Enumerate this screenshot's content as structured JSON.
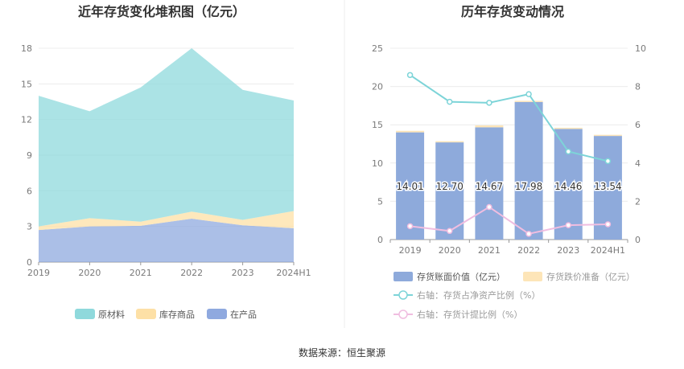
{
  "source_text": "数据来源：恒生聚源",
  "chart_data": [
    {
      "type": "area",
      "stacked": true,
      "title": "近年存货变化堆积图（亿元）",
      "categories": [
        "2019",
        "2020",
        "2021",
        "2022",
        "2023",
        "2024H1"
      ],
      "ylim": [
        0,
        18
      ],
      "yticks": [
        "0",
        "3",
        "6",
        "9",
        "12",
        "15",
        "18"
      ],
      "grid": true,
      "legend_position": "bottom",
      "series": [
        {
          "name": "在产品",
          "color": "#8fa9df",
          "values": [
            2.7,
            3.0,
            3.05,
            3.65,
            3.1,
            2.85
          ]
        },
        {
          "name": "库存商品",
          "color": "#fde0a6",
          "values": [
            0.3,
            0.7,
            0.35,
            0.6,
            0.45,
            1.45
          ]
        },
        {
          "name": "原材料",
          "color": "#8fd9dc",
          "values": [
            11.0,
            9.0,
            11.3,
            13.75,
            10.95,
            9.3
          ]
        }
      ]
    },
    {
      "type": "bar",
      "title": "历年存货变动情况",
      "categories": [
        "2019",
        "2020",
        "2021",
        "2022",
        "2023",
        "2024H1"
      ],
      "ylim": [
        0,
        25
      ],
      "yticks": [
        "0",
        "5",
        "10",
        "15",
        "20",
        "25"
      ],
      "y2lim": [
        0,
        10
      ],
      "y2ticks": [
        "0",
        "2",
        "4",
        "6",
        "8",
        "10"
      ],
      "grid": true,
      "legend_position": "bottom",
      "series": [
        {
          "name": "存货账面价值（亿元）",
          "color": "#8eaadb",
          "axis": "left",
          "kind": "bar",
          "values": [
            14.01,
            12.7,
            14.67,
            17.98,
            14.46,
            13.54
          ],
          "labels": [
            "14.01",
            "12.70",
            "14.67",
            "17.98",
            "14.46",
            "13.54"
          ]
        },
        {
          "name": "存货跌价准备（亿元）",
          "color": "#fde5b8",
          "axis": "left",
          "kind": "bar-stack",
          "values": [
            0.2,
            0.15,
            0.25,
            0.15,
            0.15,
            0.15
          ]
        },
        {
          "name": "右轴：存货占净资产比例（%）",
          "color": "#7dd4d8",
          "axis": "right",
          "kind": "line",
          "values": [
            8.6,
            7.2,
            7.15,
            7.6,
            4.6,
            4.1
          ]
        },
        {
          "name": "右轴：存货计提比例（%）",
          "color": "#f0bde0",
          "axis": "right",
          "kind": "line",
          "values": [
            0.7,
            0.45,
            1.7,
            0.3,
            0.75,
            0.8
          ]
        }
      ]
    }
  ]
}
